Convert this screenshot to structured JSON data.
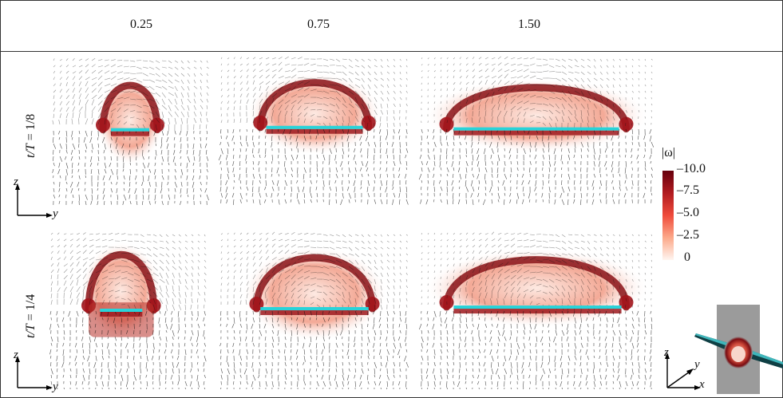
{
  "columns": [
    "0.25",
    "0.75",
    "1.50"
  ],
  "rows": [
    {
      "var": "t/T",
      "eq": "=",
      "value": "1/8"
    },
    {
      "var": "t/T",
      "eq": "=",
      "value": "1/4"
    }
  ],
  "colorbar": {
    "title": "|ω|",
    "ticks": [
      "10.0",
      "7.5",
      "5.0",
      "2.5",
      "0"
    ],
    "values": [
      10.0,
      7.5,
      5.0,
      2.5,
      0
    ],
    "range": [
      0,
      10
    ],
    "color_high": "#67000d",
    "color_low": "#fff5f0"
  },
  "axes": {
    "left_upper": {
      "vertical": "z",
      "horizontal": "y"
    },
    "left_lower": {
      "vertical": "z",
      "horizontal": "y"
    },
    "inset": {
      "vertical": "z",
      "depth": "y",
      "horizontal": "x"
    }
  },
  "colors": {
    "plate": "#29d3d9",
    "vortex": "#8a1216",
    "vectors": "#111111"
  }
}
